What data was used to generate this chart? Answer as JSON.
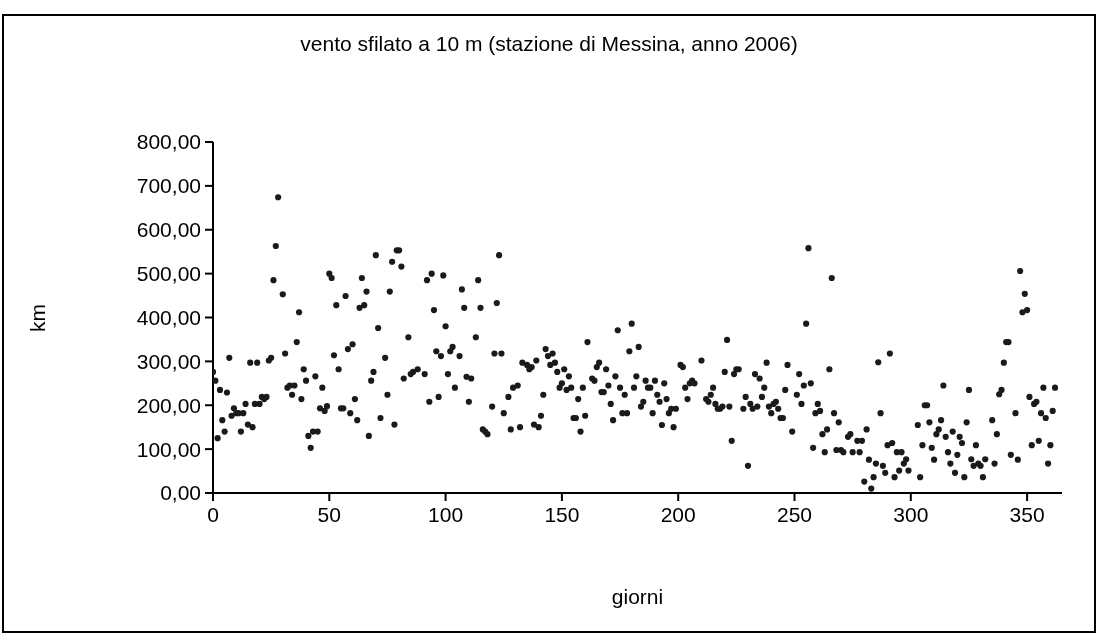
{
  "chart_data": {
    "type": "scatter",
    "title": "vento sfilato a 10 m (stazione di Messina, anno 2006)",
    "xlabel": "giorni",
    "ylabel": "km",
    "xlim": [
      0,
      365
    ],
    "xticks": [
      0,
      50,
      100,
      150,
      200,
      250,
      300,
      350
    ],
    "ylim": [
      0,
      800
    ],
    "yticks": [
      {
        "value": 0,
        "label": "0,00"
      },
      {
        "value": 100,
        "label": "100,00"
      },
      {
        "value": 200,
        "label": "200,00"
      },
      {
        "value": 300,
        "label": "300,00"
      },
      {
        "value": 400,
        "label": "400,00"
      },
      {
        "value": 500,
        "label": "500,00"
      },
      {
        "value": 600,
        "label": "600,00"
      },
      {
        "value": 700,
        "label": "700,00"
      },
      {
        "value": 800,
        "label": "800,00"
      }
    ],
    "grid": false,
    "legend": false,
    "marker": "circle",
    "series": [
      {
        "color": "#1a1a1a",
        "x": [
          0,
          1,
          2,
          3,
          4,
          5,
          6,
          7,
          8,
          9,
          10,
          11,
          12,
          13,
          14,
          15,
          16,
          17,
          18,
          19,
          20,
          21,
          22,
          23,
          24,
          25,
          26,
          27,
          28,
          30,
          31,
          32,
          33,
          34,
          35,
          36,
          37,
          38,
          39,
          40,
          41,
          42,
          43,
          44,
          45,
          46,
          47,
          48,
          49,
          50,
          51,
          52,
          53,
          54,
          55,
          56,
          57,
          58,
          59,
          60,
          61,
          62,
          63,
          64,
          65,
          66,
          67,
          68,
          69,
          70,
          71,
          72,
          74,
          75,
          76,
          77,
          78,
          79,
          80,
          81,
          82,
          84,
          85,
          86,
          88,
          91,
          92,
          93,
          94,
          95,
          96,
          97,
          98,
          99,
          100,
          101,
          102,
          103,
          104,
          106,
          107,
          108,
          109,
          110,
          111,
          113,
          114,
          115,
          116,
          117,
          118,
          120,
          121,
          122,
          123,
          124,
          125,
          127,
          128,
          129,
          131,
          132,
          133,
          135,
          136,
          137,
          138,
          139,
          140,
          141,
          142,
          143,
          144,
          145,
          146,
          147,
          148,
          149,
          150,
          151,
          152,
          153,
          154,
          155,
          156,
          157,
          158,
          159,
          160,
          161,
          163,
          164,
          165,
          166,
          167,
          168,
          169,
          170,
          171,
          172,
          173,
          174,
          175,
          176,
          177,
          178,
          179,
          180,
          181,
          182,
          183,
          184,
          185,
          186,
          187,
          188,
          189,
          190,
          191,
          192,
          193,
          194,
          195,
          196,
          197,
          198,
          199,
          201,
          202,
          203,
          204,
          205,
          206,
          207,
          210,
          212,
          213,
          214,
          215,
          216,
          217,
          218,
          219,
          220,
          221,
          222,
          223,
          224,
          225,
          226,
          228,
          229,
          230,
          231,
          232,
          233,
          234,
          235,
          236,
          237,
          238,
          239,
          240,
          241,
          242,
          243,
          244,
          245,
          246,
          247,
          249,
          251,
          252,
          253,
          254,
          255,
          256,
          257,
          258,
          259,
          260,
          261,
          262,
          263,
          264,
          265,
          266,
          267,
          268,
          269,
          270,
          271,
          273,
          274,
          275,
          277,
          278,
          279,
          280,
          281,
          282,
          283,
          284,
          285,
          286,
          287,
          288,
          289,
          290,
          291,
          292,
          293,
          294,
          295,
          296,
          297,
          298,
          299,
          303,
          304,
          305,
          306,
          307,
          308,
          309,
          310,
          311,
          312,
          313,
          314,
          315,
          316,
          317,
          318,
          319,
          320,
          321,
          322,
          323,
          324,
          325,
          326,
          327,
          328,
          329,
          330,
          331,
          332,
          335,
          336,
          337,
          338,
          339,
          340,
          341,
          342,
          343,
          345,
          346,
          347,
          348,
          349,
          350,
          351,
          352,
          353,
          354,
          355,
          356,
          357,
          358,
          359,
          360,
          361,
          362
        ],
        "values": [
          276,
          256,
          125,
          235,
          166,
          140,
          229,
          308,
          176,
          193,
          182,
          182,
          140,
          182,
          203,
          156,
          297,
          150,
          203,
          297,
          203,
          219,
          214,
          219,
          302,
          308,
          485,
          563,
          674,
          453,
          318,
          240,
          245,
          224,
          245,
          344,
          412,
          214,
          282,
          256,
          130,
          103,
          140,
          266,
          140,
          193,
          240,
          187,
          198,
          500,
          490,
          314,
          428,
          282,
          193,
          193,
          449,
          328,
          182,
          339,
          214,
          166,
          422,
          490,
          428,
          459,
          130,
          256,
          276,
          542,
          376,
          171,
          308,
          224,
          459,
          527,
          156,
          553,
          553,
          516,
          261,
          355,
          271,
          276,
          282,
          271,
          485,
          208,
          500,
          417,
          323,
          219,
          312,
          496,
          380,
          271,
          323,
          333,
          240,
          312,
          464,
          422,
          265,
          208,
          261,
          355,
          485,
          422,
          145,
          140,
          134,
          197,
          318,
          433,
          542,
          318,
          182,
          219,
          145,
          240,
          245,
          150,
          297,
          292,
          282,
          287,
          156,
          302,
          150,
          176,
          224,
          328,
          312,
          292,
          318,
          297,
          276,
          240,
          250,
          282,
          235,
          266,
          240,
          171,
          171,
          214,
          140,
          240,
          176,
          344,
          261,
          256,
          287,
          297,
          230,
          230,
          282,
          245,
          203,
          166,
          266,
          371,
          240,
          182,
          224,
          182,
          323,
          386,
          240,
          266,
          333,
          197,
          208,
          256,
          240,
          240,
          182,
          256,
          224,
          208,
          155,
          250,
          214,
          182,
          192,
          150,
          192,
          292,
          287,
          240,
          214,
          250,
          256,
          250,
          302,
          214,
          208,
          224,
          240,
          203,
          192,
          192,
          197,
          276,
          349,
          197,
          119,
          271,
          282,
          282,
          192,
          219,
          62,
          203,
          192,
          271,
          197,
          261,
          219,
          240,
          297,
          197,
          182,
          203,
          208,
          192,
          171,
          171,
          235,
          292,
          140,
          224,
          271,
          203,
          245,
          386,
          558,
          250,
          103,
          182,
          203,
          187,
          134,
          93,
          145,
          282,
          490,
          182,
          98,
          161,
          98,
          93,
          128,
          134,
          93,
          119,
          93,
          119,
          26,
          145,
          76,
          10,
          36,
          67,
          298,
          182,
          62,
          46,
          109,
          318,
          114,
          36,
          93,
          51,
          93,
          67,
          77,
          51,
          155,
          36,
          109,
          200,
          200,
          161,
          103,
          76,
          134,
          145,
          166,
          245,
          128,
          93,
          67,
          140,
          46,
          87,
          128,
          114,
          36,
          161,
          235,
          77,
          62,
          109,
          67,
          62,
          36,
          77,
          166,
          67,
          134,
          225,
          235,
          297,
          344,
          344,
          87,
          182,
          76,
          506,
          412,
          454,
          417,
          219,
          109,
          203,
          208,
          119,
          182,
          240,
          171,
          67,
          109,
          187,
          240
        ]
      }
    ]
  }
}
